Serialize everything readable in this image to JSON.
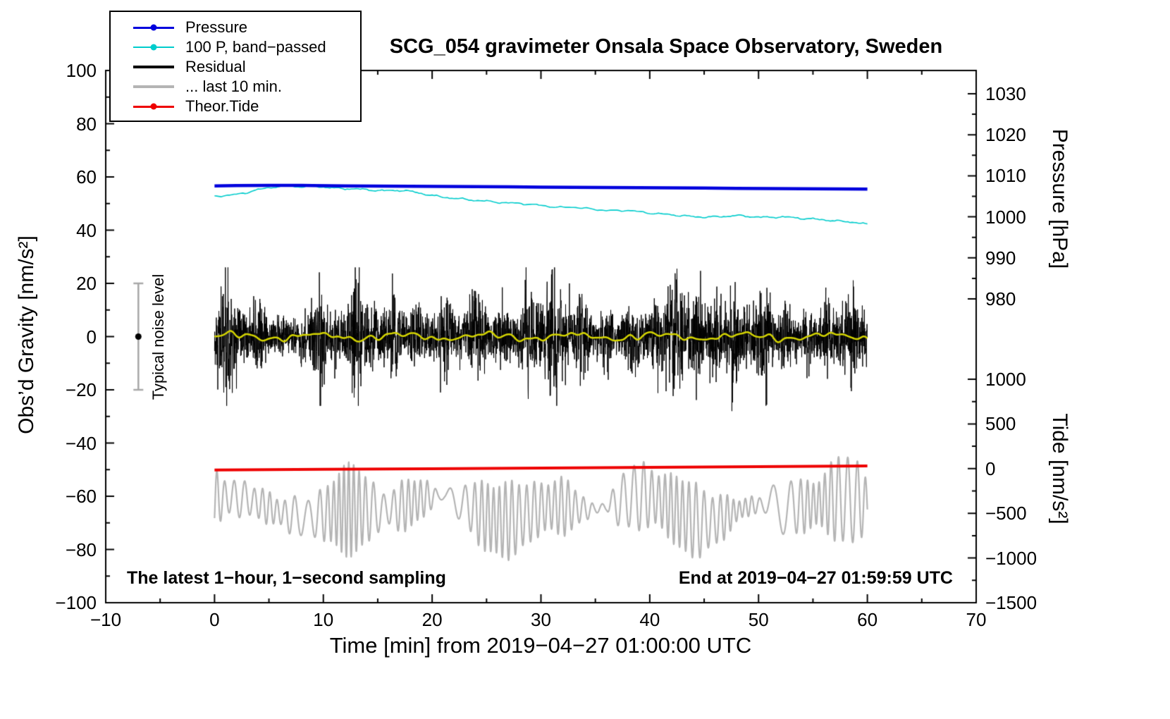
{
  "title": "SCG_054 gravimeter Onsala Space Observatory, Sweden",
  "legend": {
    "items": [
      {
        "label": "Pressure",
        "color": "#0000dd",
        "thickness": 3,
        "dot": true
      },
      {
        "label": "100 P, band−passed",
        "color": "#00cccc",
        "thickness": 2,
        "dot": true
      },
      {
        "label": "Residual",
        "color": "#000000",
        "thickness": 4,
        "dot": false
      },
      {
        "label": "... last 10 min.",
        "color": "#b4b4b4",
        "thickness": 4,
        "dot": false
      },
      {
        "label": "Theor.Tide",
        "color": "#ee0000",
        "thickness": 3,
        "dot": true
      }
    ]
  },
  "annotations": {
    "sampling_note": "The latest 1−hour, 1−second sampling",
    "end_note": "End at 2019−04−27 01:59:59 UTC"
  },
  "chart_data": {
    "type": "line",
    "title": "SCG_054 gravimeter Onsala Space Observatory, Sweden",
    "grid": false,
    "legend_position": "top-left",
    "x_axis": {
      "label": "Time [min] from 2019−04−27 01:00:00 UTC",
      "min": -10,
      "max": 70,
      "major_tick_step": 10,
      "minor_tick_step": 5,
      "tick_values": [
        -10,
        0,
        10,
        20,
        30,
        40,
        50,
        60,
        70
      ],
      "tick_labels": [
        "−10",
        "0",
        "10",
        "20",
        "30",
        "40",
        "50",
        "60",
        "70"
      ]
    },
    "y_left": {
      "label": "Obs’d Gravity [nm/s²]",
      "min": -100,
      "max": 100,
      "major_tick_step": 20,
      "minor_tick_step": 10,
      "tick_values": [
        100,
        80,
        60,
        40,
        20,
        0,
        -20,
        -40,
        -60,
        -80,
        -100
      ],
      "tick_labels": [
        "100",
        "80",
        "60",
        "40",
        "20",
        "0",
        "−20",
        "−40",
        "−60",
        "−80",
        "−100"
      ]
    },
    "y_right_pressure": {
      "label": "Pressure [hPa]",
      "minor_tick_step": 5,
      "tick_values": [
        1030,
        1020,
        1010,
        1000,
        990,
        980
      ],
      "tick_labels": [
        "1030",
        "1020",
        "1010",
        "1000",
        "990",
        "980"
      ]
    },
    "y_right_tide": {
      "label": "Tide [nm/s²]",
      "minor_tick_step": 250,
      "tick_values": [
        1000,
        500,
        0,
        -500,
        -1000,
        -1500
      ],
      "tick_labels": [
        "1000",
        "500",
        "0",
        "−500",
        "−1000",
        "−1500"
      ]
    },
    "error_bar": {
      "label": "Typical noise level",
      "x_min": -7,
      "center": 0,
      "half_height": 20,
      "color": "#a8a8a8",
      "dot_color": "#000000"
    },
    "series": [
      {
        "name": "... last 10 min.",
        "axis": "gravity",
        "type": "oscillation",
        "color": "#b4b4b4",
        "width": 2.2,
        "seed": 13,
        "mean": -64.5,
        "amp_base": 9,
        "amp_variation": 6,
        "offset_wander": 3.5,
        "cycles_per_min": 1.4,
        "step_min": 0.02,
        "approx_range": [
          -80,
          -43
        ]
      },
      {
        "name": "Theor.Tide",
        "axis": "tide",
        "type": "line",
        "color": "#ee0000",
        "width": 4,
        "points": [
          [
            0,
            -15
          ],
          [
            10,
            -8
          ],
          [
            20,
            -1
          ],
          [
            30,
            6
          ],
          [
            40,
            14
          ],
          [
            50,
            22
          ],
          [
            60,
            30
          ]
        ]
      },
      {
        "name": "Residual",
        "axis": "gravity",
        "type": "noise",
        "color": "#000000",
        "width": 1,
        "seed": 42,
        "samples_per_min": 60,
        "duration_min": 60,
        "base_std": 4.8,
        "std_variation": 1.2,
        "clip": 26,
        "extreme_spike": [
          47.55,
          -28
        ],
        "bursts": [
          [
            1.2,
            2.4,
            0.35
          ],
          [
            4.0,
            1.6,
            0.3
          ],
          [
            9.55,
            3.0,
            0.5
          ],
          [
            13.0,
            1.9,
            0.3
          ],
          [
            16.5,
            2.0,
            0.35
          ],
          [
            18.5,
            1.7,
            0.25
          ],
          [
            21.0,
            1.7,
            0.3
          ],
          [
            24.0,
            2.4,
            0.4
          ],
          [
            26.5,
            1.8,
            0.3
          ],
          [
            28.7,
            2.0,
            0.3
          ],
          [
            31.0,
            2.0,
            0.35
          ],
          [
            33.5,
            1.9,
            0.3
          ],
          [
            36.0,
            1.8,
            0.3
          ],
          [
            38.3,
            2.2,
            0.35
          ],
          [
            40.5,
            1.8,
            0.3
          ],
          [
            42.3,
            2.4,
            0.4
          ],
          [
            44.2,
            2.1,
            0.35
          ],
          [
            46.0,
            2.2,
            0.4
          ],
          [
            47.8,
            2.3,
            0.3
          ],
          [
            50.5,
            2.0,
            0.35
          ],
          [
            52.5,
            1.9,
            0.3
          ],
          [
            54.5,
            1.9,
            0.3
          ],
          [
            56.3,
            2.0,
            0.3
          ],
          [
            58.5,
            1.9,
            0.3
          ]
        ]
      },
      {
        "name": "Residual smoothed",
        "axis": "gravity",
        "type": "smooth",
        "color": "#d4d400",
        "width": 2.5,
        "seed": 7,
        "mean": 0,
        "amplitude": 1.5,
        "step_min": 0.1
      },
      {
        "name": "100 P, band−passed",
        "axis": "gravity",
        "type": "line",
        "color": "#00cccc",
        "width": 1.6,
        "wiggle": 0.3,
        "wiggle_seed": 21,
        "points": [
          [
            0,
            52.8
          ],
          [
            1,
            53.0
          ],
          [
            2,
            53.4
          ],
          [
            3,
            54.2
          ],
          [
            4,
            55.2
          ],
          [
            5,
            56.0
          ],
          [
            6,
            56.4
          ],
          [
            7,
            56.5
          ],
          [
            8,
            56.3
          ],
          [
            9,
            56.6
          ],
          [
            10,
            56.2
          ],
          [
            11,
            55.8
          ],
          [
            12,
            55.6
          ],
          [
            13,
            55.5
          ],
          [
            14,
            55.2
          ],
          [
            15,
            54.9
          ],
          [
            16,
            54.8
          ],
          [
            17,
            55.0
          ],
          [
            18,
            54.6
          ],
          [
            19,
            53.8
          ],
          [
            20,
            53.0
          ],
          [
            21,
            52.4
          ],
          [
            22,
            52.0
          ],
          [
            23,
            51.6
          ],
          [
            24,
            51.2
          ],
          [
            25,
            50.9
          ],
          [
            26,
            50.5
          ],
          [
            27,
            50.2
          ],
          [
            28,
            50.1
          ],
          [
            29,
            49.7
          ],
          [
            30,
            49.3
          ],
          [
            31,
            48.8
          ],
          [
            32,
            48.5
          ],
          [
            33,
            48.7
          ],
          [
            34,
            48.2
          ],
          [
            35,
            47.8
          ],
          [
            36,
            47.4
          ],
          [
            37,
            47.3
          ],
          [
            38,
            47.5
          ],
          [
            39,
            46.9
          ],
          [
            40,
            46.4
          ],
          [
            41,
            46.1
          ],
          [
            42,
            45.8
          ],
          [
            43,
            45.4
          ],
          [
            44,
            45.1
          ],
          [
            45,
            44.9
          ],
          [
            46,
            45.0
          ],
          [
            47,
            45.2
          ],
          [
            48,
            45.5
          ],
          [
            49,
            45.2
          ],
          [
            50,
            44.9
          ],
          [
            51,
            44.8
          ],
          [
            52,
            45.0
          ],
          [
            53,
            44.8
          ],
          [
            54,
            44.4
          ],
          [
            55,
            44.2
          ],
          [
            56,
            43.9
          ],
          [
            57,
            43.5
          ],
          [
            58,
            43.2
          ],
          [
            59,
            42.9
          ],
          [
            60,
            42.1
          ]
        ]
      },
      {
        "name": "Pressure",
        "axis": "pressure",
        "type": "line",
        "color": "#0000dd",
        "width": 4.5,
        "points": [
          [
            0,
            1007.55
          ],
          [
            2,
            1007.6
          ],
          [
            5,
            1007.65
          ],
          [
            8,
            1007.65
          ],
          [
            9,
            1007.6
          ],
          [
            12,
            1007.55
          ],
          [
            15,
            1007.5
          ],
          [
            18,
            1007.45
          ],
          [
            21,
            1007.4
          ],
          [
            24,
            1007.35
          ],
          [
            27,
            1007.3
          ],
          [
            30,
            1007.25
          ],
          [
            33,
            1007.2
          ],
          [
            36,
            1007.15
          ],
          [
            39,
            1007.1
          ],
          [
            42,
            1007.05
          ],
          [
            45,
            1007.0
          ],
          [
            48,
            1006.95
          ],
          [
            51,
            1006.9
          ],
          [
            54,
            1006.85
          ],
          [
            57,
            1006.8
          ],
          [
            60,
            1006.75
          ]
        ]
      }
    ]
  }
}
